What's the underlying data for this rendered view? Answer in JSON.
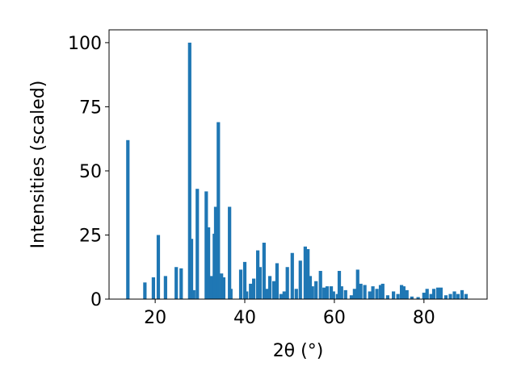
{
  "chart_data": {
    "type": "bar",
    "x_label": "2θ (°)",
    "y_label": "Intensities (scaled)",
    "x": [
      13.9,
      17.7,
      19.6,
      20.7,
      22.3,
      24.7,
      25.8,
      27.7,
      28.1,
      28.6,
      29.4,
      31.4,
      31.9,
      32.6,
      33.2,
      33.5,
      34.1,
      34.8,
      35.3,
      36.6,
      36.9,
      39.1,
      40.0,
      40.4,
      41.3,
      42.0,
      42.9,
      43.4,
      44.3,
      44.9,
      45.6,
      46.5,
      47.2,
      48.1,
      48.8,
      49.5,
      50.6,
      51.5,
      52.4,
      53.5,
      54.1,
      54.6,
      55.1,
      55.9,
      56.9,
      57.7,
      58.4,
      59.3,
      59.8,
      60.7,
      61.1,
      61.6,
      62.5,
      63.8,
      64.5,
      65.2,
      65.9,
      66.8,
      67.9,
      68.6,
      69.5,
      70.3,
      70.8,
      71.9,
      73.2,
      74.2,
      75.0,
      75.5,
      76.2,
      77.3,
      78.7,
      80.0,
      80.7,
      81.6,
      82.2,
      83.1,
      83.8,
      84.9,
      85.9,
      86.8,
      87.6,
      88.5,
      89.4
    ],
    "values": [
      62,
      6.5,
      8.5,
      25,
      9,
      12.5,
      12,
      100,
      23.5,
      3.5,
      43,
      42,
      28,
      9,
      25.5,
      36,
      69,
      10,
      8.5,
      36,
      4,
      11.5,
      14.5,
      3,
      6,
      8,
      19,
      12.5,
      22,
      4,
      9,
      7,
      14,
      2,
      3,
      12.5,
      18,
      4,
      15,
      20.5,
      19.5,
      9,
      5,
      7,
      11,
      4.5,
      5,
      5,
      3,
      2,
      11,
      5,
      3.5,
      1.5,
      4,
      11.5,
      6,
      5.5,
      3,
      5,
      4,
      5.5,
      6,
      1.5,
      3,
      2,
      5.5,
      5,
      3.5,
      1,
      0.8,
      2.5,
      4,
      2,
      4,
      4.5,
      4.5,
      1.5,
      2,
      3,
      2,
      3.5,
      2
    ],
    "color": "#1f77b4",
    "xlim": [
      9.7,
      94.1
    ],
    "xticks": [
      20,
      40,
      60,
      80
    ],
    "ylim": [
      0,
      105
    ],
    "yticks": [
      0,
      25,
      50,
      75,
      100
    ]
  }
}
